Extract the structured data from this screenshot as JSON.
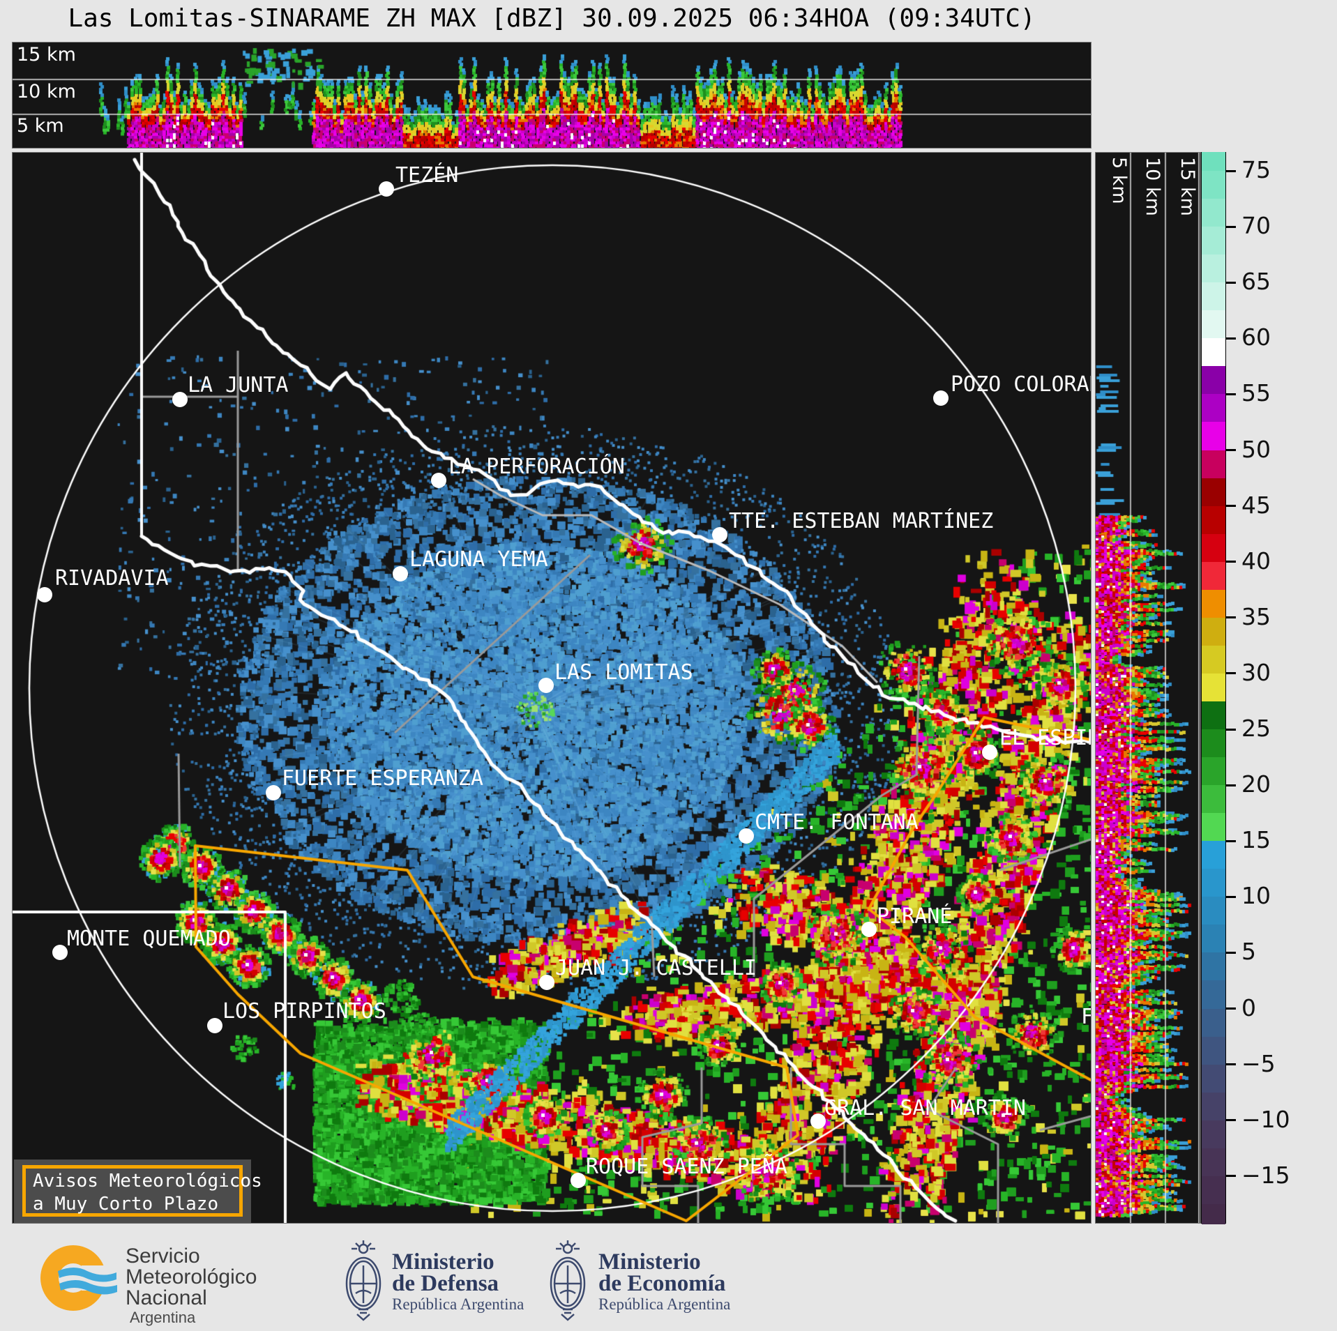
{
  "title": "Las Lomitas-SINARAME ZH MAX [dBZ] 30.09.2025 06:34HOA (09:34UTC)",
  "top_panel": {
    "height_labels": [
      "15 km",
      "10 km",
      "5 km"
    ]
  },
  "right_panel": {
    "height_labels": [
      "5 km",
      "10 km",
      "15 km"
    ]
  },
  "colorbar": {
    "unit": "dBZ",
    "tick_values": [
      75,
      70,
      65,
      60,
      55,
      50,
      45,
      40,
      35,
      30,
      25,
      20,
      15,
      10,
      5,
      0,
      -5,
      -10,
      -15
    ],
    "tick_labels": [
      "75",
      "70",
      "65",
      "60",
      "55",
      "50",
      "45",
      "40",
      "35",
      "30",
      "25",
      "20",
      "15",
      "10",
      "5",
      "0",
      "−5",
      "−10",
      "−15"
    ],
    "top_value": 77.5,
    "step": 2.5,
    "segment_colors_top_to_bottom": [
      "#6fe0bd",
      "#7ee4c4",
      "#92e8cd",
      "#a5ecd6",
      "#b9f0df",
      "#cdf4e8",
      "#e2f8f1",
      "#ffffff",
      "#8a00a8",
      "#ac00c4",
      "#e800e8",
      "#c8005e",
      "#9a0000",
      "#b80000",
      "#d60010",
      "#f02838",
      "#ef8e00",
      "#cfae10",
      "#d6ca22",
      "#e6e236",
      "#0e7012",
      "#1c8c1c",
      "#2aa42a",
      "#3cbc3c",
      "#52d852",
      "#28a0d8",
      "#2996cc",
      "#2a8cc0",
      "#2b82b4",
      "#2f74a4",
      "#356998",
      "#3a5f8c",
      "#3f5580",
      "#434b74",
      "#464268",
      "#483a5e",
      "#483456",
      "#462f50",
      "#442b4a"
    ]
  },
  "cities": [
    {
      "name": "TEZÉN",
      "dot": [
        553,
        270
      ],
      "label": [
        566,
        233
      ]
    },
    {
      "name": "LA JUNTA",
      "dot": [
        257,
        572
      ],
      "label": [
        268,
        534
      ]
    },
    {
      "name": "POZO COLORADO",
      "dot": [
        1348,
        570
      ],
      "label": [
        1362,
        533
      ]
    },
    {
      "name": "RIVADAVIA",
      "dot": [
        63,
        852
      ],
      "label": [
        78,
        811
      ]
    },
    {
      "name": "LA PERFORACIÓN",
      "dot": [
        628,
        688
      ],
      "label": [
        642,
        651
      ]
    },
    {
      "name": "TTE. ESTEBAN MARTÍNEZ",
      "dot": [
        1031,
        766
      ],
      "label": [
        1044,
        729
      ]
    },
    {
      "name": "LAGUNA YEMA",
      "dot": [
        573,
        822
      ],
      "label": [
        586,
        784
      ]
    },
    {
      "name": "LAS LOMITAS",
      "dot": [
        782,
        982
      ],
      "label": [
        794,
        946
      ]
    },
    {
      "name": "EL ESPIN",
      "dot": [
        1418,
        1078
      ],
      "label": [
        1432,
        1040
      ]
    },
    {
      "name": "FUERTE ESPERANZA",
      "dot": [
        391,
        1136
      ],
      "label": [
        403,
        1098
      ]
    },
    {
      "name": "CMTE. FONTANA",
      "dot": [
        1069,
        1198
      ],
      "label": [
        1081,
        1161
      ]
    },
    {
      "name": "MONTE QUEMADO",
      "dot": [
        85,
        1365
      ],
      "label": [
        95,
        1328
      ]
    },
    {
      "name": "PIRANÉ",
      "dot": [
        1245,
        1332
      ],
      "label": [
        1256,
        1296
      ]
    },
    {
      "name": "JUAN J. CASTELLI",
      "dot": [
        783,
        1408
      ],
      "label": [
        795,
        1370
      ]
    },
    {
      "name": "LOS PIRPINTOS",
      "dot": [
        307,
        1470
      ],
      "label": [
        318,
        1432
      ]
    },
    {
      "name": "GRAL. SAN MARTIN",
      "dot": [
        1172,
        1607
      ],
      "label": [
        1181,
        1571
      ]
    },
    {
      "name": "ROQUE SAENZ PEÑA",
      "dot": [
        828,
        1692
      ],
      "label": [
        839,
        1655
      ]
    },
    {
      "name": "F",
      "dot": null,
      "label": [
        1549,
        1440
      ]
    }
  ],
  "warning_box": {
    "line1": "Avisos Meteorológicos",
    "line2": "a Muy Corto Plazo"
  },
  "footer": {
    "smn_lines": [
      "Servicio",
      "Meteorológico",
      "Nacional",
      "Argentina"
    ],
    "defensa_lines": [
      "Ministerio",
      "de Defensa",
      "República Argentina"
    ],
    "economia_lines": [
      "Ministerio",
      "de Economía",
      "República Argentina"
    ]
  },
  "colors": {
    "accent_orange": "#F7A600",
    "map_background": "#151515",
    "label_white": "#ffffff",
    "river_white": "#ffffff",
    "border_gray": "#9a9a9a",
    "smn_logo_orange": "#f6a821",
    "smn_logo_blue": "#41aadc",
    "ministry_navy": "#3d4a6e"
  }
}
